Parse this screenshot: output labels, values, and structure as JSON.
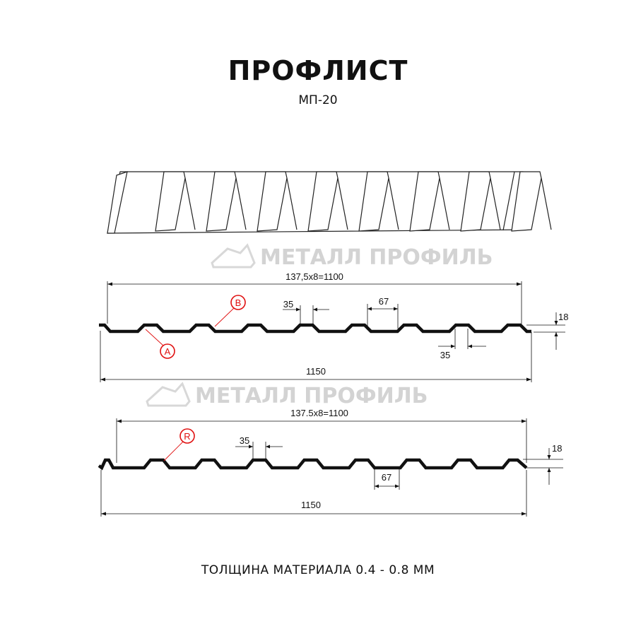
{
  "title": "ПРОФЛИСТ",
  "subtitle": "МП-20",
  "footer": "ТОЛЩИНА МАТЕРИАЛА 0.4 - 0.8 ММ",
  "watermark": "МЕТАЛЛ ПРОФИЛЬ",
  "colors": {
    "profile": "#111111",
    "marker": "#e01010",
    "watermark": "#d3d3d3"
  },
  "profile_a": {
    "pitch_label": "137,5x8=1100",
    "width_label": "1150",
    "top_flat_label": "35",
    "bottom_flat_label": "67",
    "bottom_flat_label_2": "35",
    "height_label": "18",
    "marker_a": "A",
    "marker_b": "B"
  },
  "profile_b": {
    "pitch_label": "137.5x8=1100",
    "width_label": "1150",
    "top_flat_label": "35",
    "bottom_flat_label": "67",
    "height_label": "18",
    "marker_r": "R"
  }
}
